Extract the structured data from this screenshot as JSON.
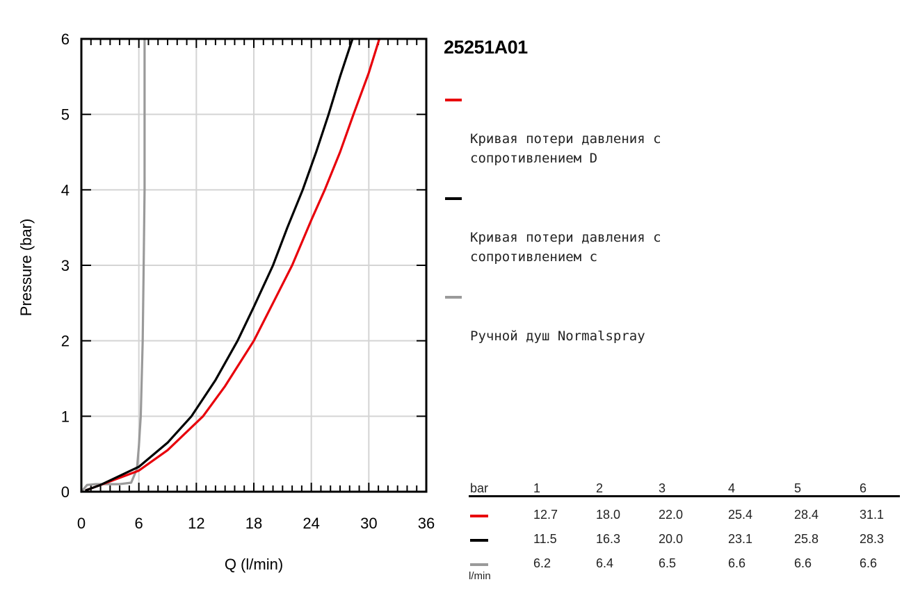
{
  "chart_data": {
    "type": "line",
    "title": "25251A01",
    "xlabel": "Q (l/min)",
    "ylabel": "Pressure (bar)",
    "xlim": [
      0,
      36
    ],
    "ylim": [
      0,
      6
    ],
    "x_ticks": [
      "0",
      "6",
      "12",
      "18",
      "24",
      "30",
      "36"
    ],
    "y_ticks": [
      "0",
      "1",
      "2",
      "3",
      "4",
      "5",
      "6"
    ],
    "grid": true,
    "legend_position": "right",
    "series": [
      {
        "name": "Кривая потери давления с\nсопротивлением D",
        "color": "#e8000b",
        "points": [
          [
            0.5,
            0.02
          ],
          [
            2,
            0.09
          ],
          [
            6,
            0.28
          ],
          [
            9,
            0.55
          ],
          [
            12.7,
            1.0
          ],
          [
            15,
            1.4
          ],
          [
            18.0,
            2.0
          ],
          [
            20,
            2.5
          ],
          [
            22.0,
            3.0
          ],
          [
            24,
            3.6
          ],
          [
            25.4,
            4.0
          ],
          [
            27,
            4.5
          ],
          [
            28.4,
            5.0
          ],
          [
            30,
            5.55
          ],
          [
            31.1,
            6.0
          ]
        ]
      },
      {
        "name": "Кривая потери давления с\nсопротивлением с",
        "color": "#000000",
        "points": [
          [
            0.5,
            0.02
          ],
          [
            2,
            0.09
          ],
          [
            6,
            0.33
          ],
          [
            9,
            0.65
          ],
          [
            11.5,
            1.0
          ],
          [
            14,
            1.48
          ],
          [
            16.3,
            2.0
          ],
          [
            18,
            2.45
          ],
          [
            20.0,
            3.0
          ],
          [
            21.5,
            3.5
          ],
          [
            23.1,
            4.0
          ],
          [
            24.5,
            4.5
          ],
          [
            25.8,
            5.0
          ],
          [
            27,
            5.5
          ],
          [
            28.3,
            6.0
          ]
        ]
      },
      {
        "name": "Ручной душ Normalspray",
        "color": "#9a9a9a",
        "points": [
          [
            0,
            0.0
          ],
          [
            0.6,
            0.09
          ],
          [
            1.5,
            0.1
          ],
          [
            4,
            0.1
          ],
          [
            5.2,
            0.12
          ],
          [
            5.8,
            0.3
          ],
          [
            6.0,
            0.6
          ],
          [
            6.1,
            0.8
          ],
          [
            6.2,
            1.0
          ],
          [
            6.4,
            2.0
          ],
          [
            6.5,
            3.0
          ],
          [
            6.6,
            4.0
          ],
          [
            6.6,
            5.0
          ],
          [
            6.6,
            6.0
          ]
        ]
      }
    ],
    "table": {
      "header_label": "bar",
      "columns": [
        "1",
        "2",
        "3",
        "4",
        "5",
        "6"
      ],
      "rows": [
        {
          "color": "#e8000b",
          "values": [
            "12.7",
            "18.0",
            "22.0",
            "25.4",
            "28.4",
            "31.1"
          ]
        },
        {
          "color": "#000000",
          "values": [
            "11.5",
            "16.3",
            "20.0",
            "23.1",
            "25.8",
            "28.3"
          ]
        },
        {
          "color": "#9a9a9a",
          "values": [
            "6.2",
            "6.4",
            "6.5",
            "6.6",
            "6.6",
            "6.6"
          ]
        }
      ],
      "unit": "l/min"
    }
  }
}
